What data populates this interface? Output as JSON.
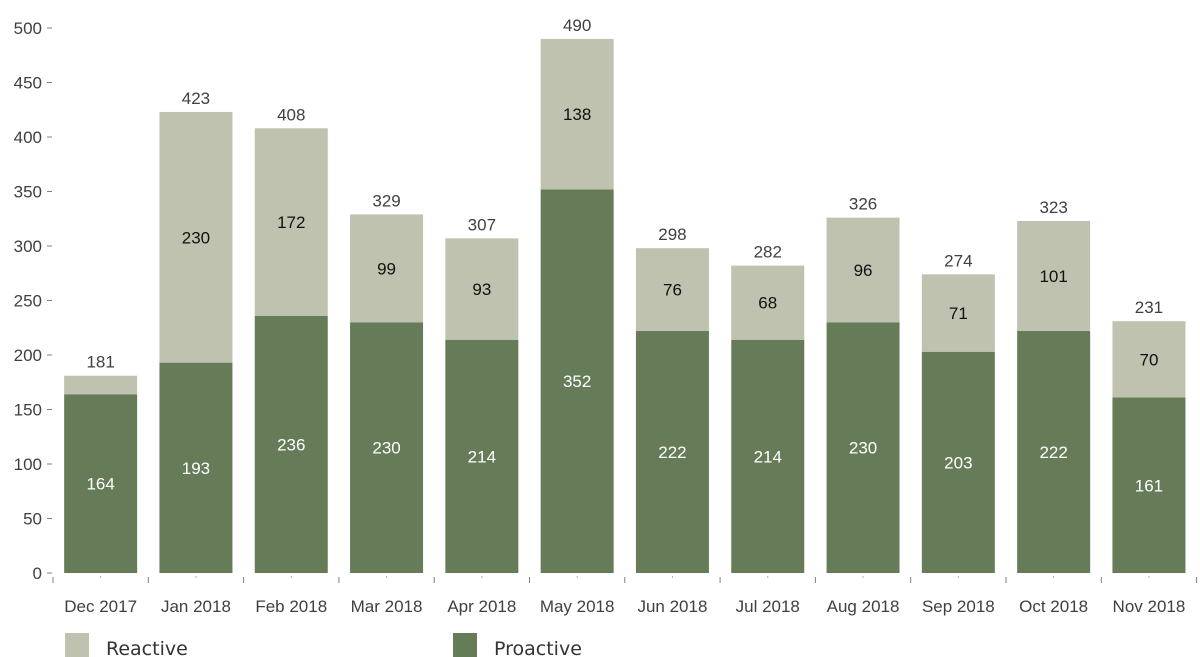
{
  "chart_data": {
    "type": "bar",
    "stacked": true,
    "categories": [
      "Dec 2017",
      "Jan 2018",
      "Feb 2018",
      "Mar 2018",
      "Apr 2018",
      "May 2018",
      "Jun 2018",
      "Jul 2018",
      "Aug 2018",
      "Sep 2018",
      "Oct 2018",
      "Nov 2018"
    ],
    "series": [
      {
        "name": "Proactive",
        "color": "#667c59",
        "values": [
          164,
          193,
          236,
          230,
          214,
          352,
          222,
          214,
          230,
          203,
          222,
          161
        ]
      },
      {
        "name": "Reactive",
        "color": "#bec2af",
        "values": [
          17,
          230,
          172,
          99,
          93,
          138,
          76,
          68,
          96,
          71,
          101,
          70
        ]
      }
    ],
    "totals": [
      181,
      423,
      408,
      329,
      307,
      490,
      298,
      282,
      326,
      274,
      323,
      231
    ],
    "segment_labels": {
      "Proactive": [
        "164",
        "193",
        "236",
        "230",
        "214",
        "352",
        "222",
        "214",
        "230",
        "203",
        "222",
        "161"
      ],
      "Reactive": [
        "",
        "230",
        "172",
        "99",
        "93",
        "138",
        "76",
        "68",
        "96",
        "71",
        "101",
        "70"
      ]
    },
    "ylim": [
      0,
      500
    ],
    "yticks": [
      0,
      50,
      100,
      150,
      200,
      250,
      300,
      350,
      400,
      450,
      500
    ],
    "grid": false,
    "legend": {
      "position": "bottom-left",
      "order": [
        "Reactive",
        "Proactive"
      ]
    },
    "title": "",
    "xlabel": "",
    "ylabel": ""
  }
}
